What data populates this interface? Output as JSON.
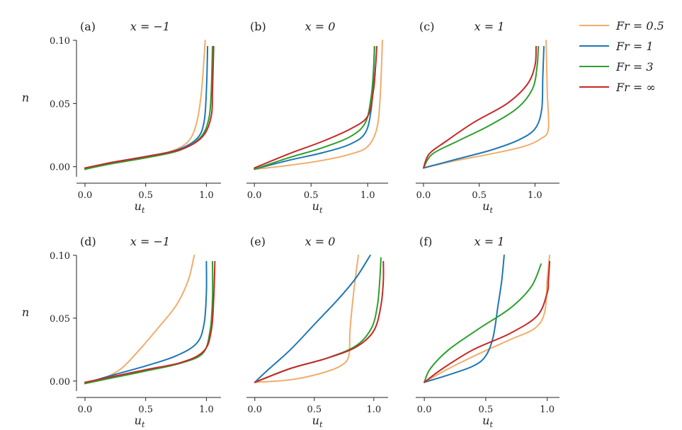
{
  "legend": {
    "entries": [
      {
        "label": "Fr = 0.5",
        "color": "#f0ad6b"
      },
      {
        "label": "Fr = 1",
        "color": "#1f77b4"
      },
      {
        "label": "Fr = 3",
        "color": "#2ca02c"
      },
      {
        "label": "Fr = ∞",
        "color": "#c62828"
      }
    ]
  },
  "chart_data": [
    {
      "type": "line",
      "panel": "(a)",
      "title": "x = −1",
      "xlabel": "u_t",
      "ylabel": "n",
      "xlim": [
        -0.07,
        1.12
      ],
      "ylim": [
        -0.008,
        0.1
      ],
      "xticks": [
        "0.0",
        "0.5",
        "1.0"
      ],
      "yticks": [
        "0.00",
        "0.05",
        "0.10"
      ],
      "series": [
        {
          "name": "Fr = 0.5",
          "points": [
            [
              0,
              -0.002
            ],
            [
              0.2,
              0.003
            ],
            [
              0.45,
              0.007
            ],
            [
              0.7,
              0.012
            ],
            [
              0.85,
              0.02
            ],
            [
              0.92,
              0.035
            ],
            [
              0.96,
              0.06
            ],
            [
              0.99,
              0.1
            ]
          ]
        },
        {
          "name": "Fr = 1",
          "points": [
            [
              0,
              -0.002
            ],
            [
              0.2,
              0.003
            ],
            [
              0.5,
              0.008
            ],
            [
              0.75,
              0.013
            ],
            [
              0.92,
              0.022
            ],
            [
              0.98,
              0.035
            ],
            [
              1.0,
              0.06
            ],
            [
              1.01,
              0.095
            ]
          ]
        },
        {
          "name": "Fr = 3",
          "points": [
            [
              0,
              -0.002
            ],
            [
              0.2,
              0.002
            ],
            [
              0.5,
              0.007
            ],
            [
              0.78,
              0.013
            ],
            [
              0.95,
              0.023
            ],
            [
              1.02,
              0.038
            ],
            [
              1.04,
              0.06
            ],
            [
              1.05,
              0.095
            ]
          ]
        },
        {
          "name": "Fr = ∞",
          "points": [
            [
              0,
              -0.001
            ],
            [
              0.2,
              0.003
            ],
            [
              0.5,
              0.008
            ],
            [
              0.8,
              0.014
            ],
            [
              0.97,
              0.024
            ],
            [
              1.04,
              0.04
            ],
            [
              1.05,
              0.06
            ],
            [
              1.06,
              0.095
            ]
          ]
        }
      ]
    },
    {
      "type": "line",
      "panel": "(b)",
      "title": "x = 0",
      "xlabel": "u_t",
      "ylabel": "",
      "xlim": [
        -0.07,
        1.18
      ],
      "ylim": [
        -0.008,
        0.1
      ],
      "xticks": [
        "0.0",
        "0.5",
        "1.0"
      ],
      "yticks": [],
      "series": [
        {
          "name": "Fr = 0.5",
          "points": [
            [
              0,
              -0.002
            ],
            [
              0.3,
              0.001
            ],
            [
              0.6,
              0.005
            ],
            [
              0.85,
              0.01
            ],
            [
              1.0,
              0.016
            ],
            [
              1.08,
              0.03
            ],
            [
              1.11,
              0.055
            ],
            [
              1.13,
              0.1
            ]
          ]
        },
        {
          "name": "Fr = 1",
          "points": [
            [
              0,
              -0.002
            ],
            [
              0.3,
              0.005
            ],
            [
              0.6,
              0.011
            ],
            [
              0.85,
              0.018
            ],
            [
              0.98,
              0.027
            ],
            [
              1.03,
              0.045
            ],
            [
              1.05,
              0.07
            ],
            [
              1.06,
              0.095
            ]
          ]
        },
        {
          "name": "Fr = 3",
          "points": [
            [
              0,
              -0.002
            ],
            [
              0.3,
              0.007
            ],
            [
              0.6,
              0.015
            ],
            [
              0.85,
              0.024
            ],
            [
              0.98,
              0.035
            ],
            [
              1.03,
              0.055
            ],
            [
              1.05,
              0.075
            ],
            [
              1.06,
              0.095
            ]
          ]
        },
        {
          "name": "Fr = ∞",
          "points": [
            [
              0,
              -0.001
            ],
            [
              0.3,
              0.01
            ],
            [
              0.6,
              0.02
            ],
            [
              0.85,
              0.03
            ],
            [
              1.0,
              0.04
            ],
            [
              1.05,
              0.06
            ],
            [
              1.07,
              0.08
            ],
            [
              1.08,
              0.095
            ]
          ]
        }
      ]
    },
    {
      "type": "line",
      "panel": "(c)",
      "title": "x = 1",
      "xlabel": "u_t",
      "ylabel": "",
      "xlim": [
        -0.07,
        1.22
      ],
      "ylim": [
        -0.008,
        0.1
      ],
      "xticks": [
        "0.0",
        "0.5",
        "1.0"
      ],
      "yticks": [],
      "series": [
        {
          "name": "Fr = 0.5",
          "points": [
            [
              0,
              -0.001
            ],
            [
              0.3,
              0.005
            ],
            [
              0.6,
              0.01
            ],
            [
              0.9,
              0.016
            ],
            [
              1.05,
              0.022
            ],
            [
              1.12,
              0.03
            ],
            [
              1.11,
              0.06
            ],
            [
              1.1,
              0.1
            ]
          ]
        },
        {
          "name": "Fr = 1",
          "points": [
            [
              0,
              -0.001
            ],
            [
              0.3,
              0.006
            ],
            [
              0.6,
              0.013
            ],
            [
              0.85,
              0.021
            ],
            [
              1.0,
              0.03
            ],
            [
              1.06,
              0.045
            ],
            [
              1.07,
              0.07
            ],
            [
              1.08,
              0.095
            ]
          ]
        },
        {
          "name": "Fr = 3",
          "points": [
            [
              0,
              -0.001
            ],
            [
              0.08,
              0.01
            ],
            [
              0.3,
              0.02
            ],
            [
              0.6,
              0.033
            ],
            [
              0.85,
              0.047
            ],
            [
              0.98,
              0.062
            ],
            [
              1.02,
              0.08
            ],
            [
              1.03,
              0.095
            ]
          ]
        },
        {
          "name": "Fr = ∞",
          "points": [
            [
              0,
              -0.001
            ],
            [
              0.05,
              0.01
            ],
            [
              0.2,
              0.02
            ],
            [
              0.45,
              0.035
            ],
            [
              0.75,
              0.05
            ],
            [
              0.93,
              0.065
            ],
            [
              1.0,
              0.08
            ],
            [
              1.01,
              0.095
            ]
          ]
        }
      ]
    },
    {
      "type": "line",
      "panel": "(d)",
      "title": "x = −1",
      "xlabel": "u_t",
      "ylabel": "n",
      "xlim": [
        -0.07,
        1.12
      ],
      "ylim": [
        -0.008,
        0.1
      ],
      "xticks": [
        "0.0",
        "0.5",
        "1.0"
      ],
      "yticks": [
        "0.00",
        "0.05",
        "0.10"
      ],
      "series": [
        {
          "name": "Fr = 0.5",
          "points": [
            [
              0,
              -0.002
            ],
            [
              0.15,
              0.002
            ],
            [
              0.3,
              0.01
            ],
            [
              0.45,
              0.025
            ],
            [
              0.6,
              0.042
            ],
            [
              0.75,
              0.06
            ],
            [
              0.85,
              0.08
            ],
            [
              0.9,
              0.1
            ]
          ]
        },
        {
          "name": "Fr = 1",
          "points": [
            [
              0,
              -0.002
            ],
            [
              0.2,
              0.004
            ],
            [
              0.5,
              0.012
            ],
            [
              0.75,
              0.02
            ],
            [
              0.92,
              0.03
            ],
            [
              0.98,
              0.045
            ],
            [
              1.0,
              0.07
            ],
            [
              1.0,
              0.095
            ]
          ]
        },
        {
          "name": "Fr = 3",
          "points": [
            [
              0,
              -0.002
            ],
            [
              0.2,
              0.002
            ],
            [
              0.5,
              0.008
            ],
            [
              0.78,
              0.014
            ],
            [
              0.97,
              0.022
            ],
            [
              1.03,
              0.04
            ],
            [
              1.05,
              0.065
            ],
            [
              1.05,
              0.095
            ]
          ]
        },
        {
          "name": "Fr = ∞",
          "points": [
            [
              0,
              -0.001
            ],
            [
              0.2,
              0.003
            ],
            [
              0.5,
              0.009
            ],
            [
              0.8,
              0.015
            ],
            [
              0.98,
              0.024
            ],
            [
              1.04,
              0.04
            ],
            [
              1.06,
              0.065
            ],
            [
              1.07,
              0.095
            ]
          ]
        }
      ]
    },
    {
      "type": "line",
      "panel": "(e)",
      "title": "x = 0",
      "xlabel": "u_t",
      "ylabel": "",
      "xlim": [
        -0.07,
        1.12
      ],
      "ylim": [
        -0.008,
        0.1
      ],
      "xticks": [
        "0.0",
        "0.5",
        "1.0"
      ],
      "yticks": [],
      "series": [
        {
          "name": "Fr = 0.5",
          "points": [
            [
              0,
              -0.001
            ],
            [
              0.3,
              0.001
            ],
            [
              0.55,
              0.006
            ],
            [
              0.72,
              0.012
            ],
            [
              0.79,
              0.02
            ],
            [
              0.8,
              0.04
            ],
            [
              0.83,
              0.07
            ],
            [
              0.87,
              0.1
            ]
          ]
        },
        {
          "name": "Fr = 1",
          "points": [
            [
              0,
              -0.001
            ],
            [
              0.1,
              0.008
            ],
            [
              0.3,
              0.025
            ],
            [
              0.5,
              0.045
            ],
            [
              0.7,
              0.065
            ],
            [
              0.85,
              0.082
            ],
            [
              0.97,
              0.1
            ]
          ]
        },
        {
          "name": "Fr = 3",
          "points": [
            [
              0,
              -0.001
            ],
            [
              0.3,
              0.01
            ],
            [
              0.6,
              0.018
            ],
            [
              0.85,
              0.028
            ],
            [
              0.98,
              0.042
            ],
            [
              1.03,
              0.06
            ],
            [
              1.05,
              0.08
            ],
            [
              1.06,
              0.098
            ]
          ]
        },
        {
          "name": "Fr = ∞",
          "points": [
            [
              0,
              -0.001
            ],
            [
              0.3,
              0.01
            ],
            [
              0.6,
              0.018
            ],
            [
              0.85,
              0.027
            ],
            [
              1.0,
              0.04
            ],
            [
              1.06,
              0.06
            ],
            [
              1.08,
              0.08
            ],
            [
              1.08,
              0.095
            ]
          ]
        }
      ]
    },
    {
      "type": "line",
      "panel": "(f)",
      "title": "x = 1",
      "xlabel": "u_t",
      "ylabel": "",
      "xlim": [
        -0.07,
        1.1
      ],
      "ylim": [
        -0.008,
        0.1
      ],
      "xticks": [
        "0.0",
        "0.5",
        "1.0"
      ],
      "yticks": [],
      "series": [
        {
          "name": "Fr = 0.5",
          "points": [
            [
              0,
              -0.001
            ],
            [
              0.2,
              0.01
            ],
            [
              0.45,
              0.022
            ],
            [
              0.7,
              0.033
            ],
            [
              0.9,
              0.042
            ],
            [
              0.98,
              0.055
            ],
            [
              1.0,
              0.08
            ],
            [
              1.02,
              0.1
            ]
          ]
        },
        {
          "name": "Fr = 1",
          "points": [
            [
              0,
              -0.001
            ],
            [
              0.2,
              0.005
            ],
            [
              0.4,
              0.012
            ],
            [
              0.5,
              0.02
            ],
            [
              0.56,
              0.035
            ],
            [
              0.6,
              0.06
            ],
            [
              0.63,
              0.08
            ],
            [
              0.65,
              0.1
            ]
          ]
        },
        {
          "name": "Fr = 3",
          "points": [
            [
              0,
              -0.001
            ],
            [
              0.05,
              0.01
            ],
            [
              0.2,
              0.025
            ],
            [
              0.45,
              0.042
            ],
            [
              0.7,
              0.058
            ],
            [
              0.87,
              0.075
            ],
            [
              0.95,
              0.093
            ]
          ]
        },
        {
          "name": "Fr = ∞",
          "points": [
            [
              0,
              -0.001
            ],
            [
              0.15,
              0.01
            ],
            [
              0.4,
              0.025
            ],
            [
              0.7,
              0.038
            ],
            [
              0.92,
              0.052
            ],
            [
              1.0,
              0.07
            ],
            [
              1.01,
              0.08
            ],
            [
              1.02,
              0.095
            ]
          ]
        }
      ]
    }
  ]
}
